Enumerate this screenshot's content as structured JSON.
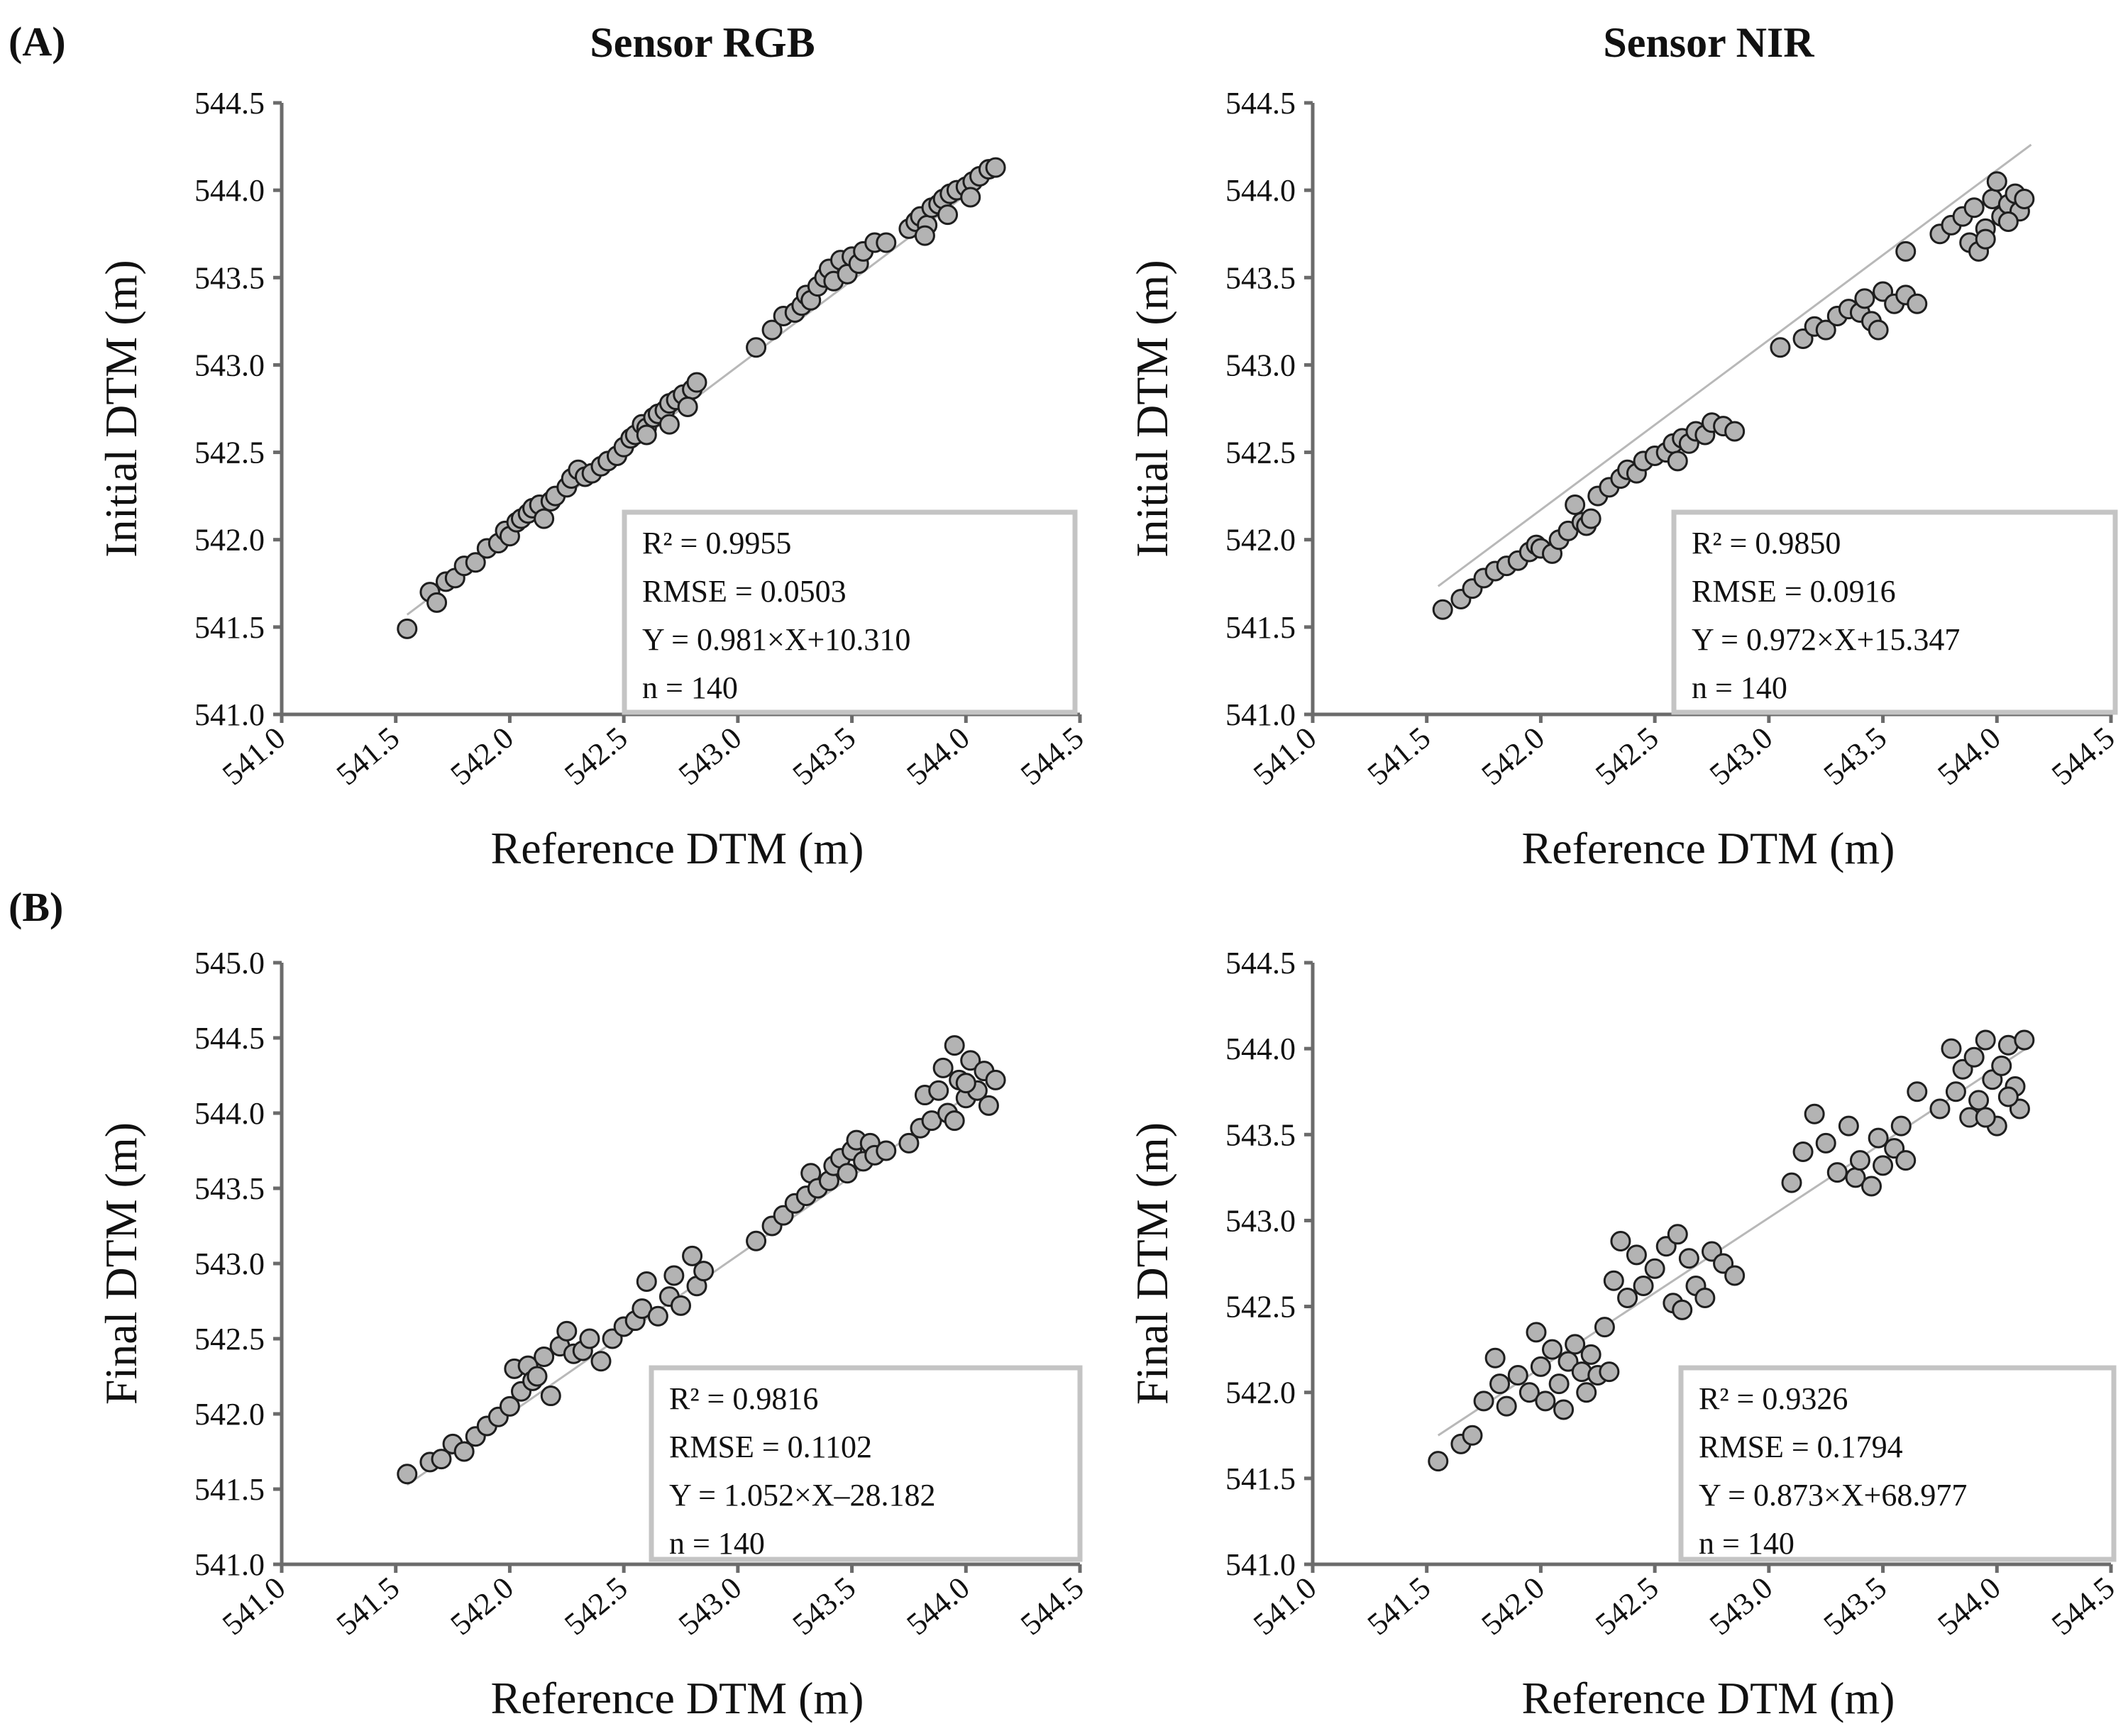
{
  "panel_labels": {
    "a": "(A)",
    "b": "(B)"
  },
  "column_titles": {
    "rgb": "Sensor RGB",
    "nir": "Sensor NIR"
  },
  "colors": {
    "marker_fill": "#b3b3b3",
    "marker_stroke": "#1e1e1e",
    "axis": "#6b6b6b",
    "fit_line": "#b8b8b8",
    "box_border": "#c4c4c4"
  },
  "chart_data": [
    {
      "id": "a_rgb",
      "type": "scatter",
      "title": "Sensor RGB",
      "xlabel": "Reference DTM (m)",
      "ylabel": "Initial DTM (m)",
      "xlim": [
        541.0,
        544.5
      ],
      "ylim": [
        541.0,
        544.5
      ],
      "xticks": [
        "541.0",
        "541.5",
        "542.0",
        "542.5",
        "543.0",
        "543.5",
        "544.0",
        "544.5"
      ],
      "yticks": [
        "541.0",
        "541.5",
        "542.0",
        "542.5",
        "543.0",
        "543.5",
        "544.0",
        "544.5"
      ],
      "fit": {
        "slope": 0.981,
        "intercept": 10.31,
        "x_range": [
          541.55,
          544.15
        ]
      },
      "stats": [
        "R² = 0.9955",
        "RMSE = 0.0503",
        "Y = 0.981×X+10.310",
        "n = 140"
      ],
      "points": [
        [
          541.55,
          541.49
        ],
        [
          541.65,
          541.7
        ],
        [
          541.68,
          541.64
        ],
        [
          541.72,
          541.76
        ],
        [
          541.76,
          541.78
        ],
        [
          541.8,
          541.85
        ],
        [
          541.85,
          541.87
        ],
        [
          541.9,
          541.95
        ],
        [
          541.95,
          541.98
        ],
        [
          541.98,
          542.05
        ],
        [
          542.0,
          542.02
        ],
        [
          542.03,
          542.1
        ],
        [
          542.05,
          542.12
        ],
        [
          542.08,
          542.15
        ],
        [
          542.1,
          542.18
        ],
        [
          542.13,
          542.2
        ],
        [
          542.15,
          542.12
        ],
        [
          542.18,
          542.22
        ],
        [
          542.2,
          542.25
        ],
        [
          542.25,
          542.3
        ],
        [
          542.27,
          542.35
        ],
        [
          542.3,
          542.4
        ],
        [
          542.33,
          542.36
        ],
        [
          542.36,
          542.38
        ],
        [
          542.4,
          542.42
        ],
        [
          542.43,
          542.45
        ],
        [
          542.47,
          542.48
        ],
        [
          542.5,
          542.53
        ],
        [
          542.53,
          542.58
        ],
        [
          542.55,
          542.6
        ],
        [
          542.58,
          542.66
        ],
        [
          542.6,
          542.64
        ],
        [
          542.63,
          542.7
        ],
        [
          542.65,
          542.72
        ],
        [
          542.68,
          542.74
        ],
        [
          542.7,
          542.78
        ],
        [
          542.73,
          542.8
        ],
        [
          542.76,
          542.83
        ],
        [
          542.8,
          542.86
        ],
        [
          542.82,
          542.9
        ],
        [
          543.08,
          543.1
        ],
        [
          543.15,
          543.2
        ],
        [
          543.2,
          543.28
        ],
        [
          543.25,
          543.3
        ],
        [
          543.28,
          543.34
        ],
        [
          543.3,
          543.4
        ],
        [
          543.32,
          543.37
        ],
        [
          543.35,
          543.45
        ],
        [
          543.38,
          543.5
        ],
        [
          543.4,
          543.55
        ],
        [
          543.42,
          543.48
        ],
        [
          543.45,
          543.6
        ],
        [
          543.48,
          543.52
        ],
        [
          543.5,
          543.62
        ],
        [
          543.53,
          543.58
        ],
        [
          543.55,
          543.65
        ],
        [
          543.6,
          543.7
        ],
        [
          543.65,
          543.7
        ],
        [
          543.75,
          543.78
        ],
        [
          543.78,
          543.82
        ],
        [
          543.8,
          543.85
        ],
        [
          543.83,
          543.8
        ],
        [
          543.85,
          543.9
        ],
        [
          543.88,
          543.92
        ],
        [
          543.9,
          543.95
        ],
        [
          543.93,
          543.98
        ],
        [
          543.96,
          544.0
        ],
        [
          544.0,
          544.02
        ],
        [
          544.03,
          544.05
        ],
        [
          544.06,
          544.08
        ],
        [
          544.1,
          544.12
        ],
        [
          544.13,
          544.13
        ],
        [
          543.82,
          543.74
        ],
        [
          543.92,
          543.86
        ],
        [
          544.02,
          543.96
        ],
        [
          542.6,
          542.6
        ],
        [
          542.7,
          542.66
        ],
        [
          542.78,
          542.76
        ]
      ]
    },
    {
      "id": "a_nir",
      "type": "scatter",
      "title": "Sensor NIR",
      "xlabel": "Reference DTM (m)",
      "ylabel": "Initial DTM (m)",
      "xlim": [
        541.0,
        544.5
      ],
      "ylim": [
        541.0,
        544.5
      ],
      "xticks": [
        "541.0",
        "541.5",
        "542.0",
        "542.5",
        "543.0",
        "543.5",
        "544.0",
        "544.5"
      ],
      "yticks": [
        "541.0",
        "541.5",
        "542.0",
        "542.5",
        "543.0",
        "543.5",
        "544.0",
        "544.5"
      ],
      "fit": {
        "slope": 0.972,
        "intercept": 15.347,
        "x_range": [
          541.55,
          544.15
        ]
      },
      "stats": [
        "R² = 0.9850",
        "RMSE = 0.0916",
        "Y = 0.972×X+15.347",
        "n = 140"
      ],
      "points": [
        [
          541.57,
          541.6
        ],
        [
          541.65,
          541.66
        ],
        [
          541.7,
          541.72
        ],
        [
          541.75,
          541.78
        ],
        [
          541.8,
          541.82
        ],
        [
          541.85,
          541.85
        ],
        [
          541.9,
          541.88
        ],
        [
          541.95,
          541.93
        ],
        [
          541.98,
          541.97
        ],
        [
          542.0,
          541.95
        ],
        [
          542.05,
          541.92
        ],
        [
          542.08,
          542.0
        ],
        [
          542.12,
          542.05
        ],
        [
          542.15,
          542.2
        ],
        [
          542.18,
          542.1
        ],
        [
          542.2,
          542.08
        ],
        [
          542.22,
          542.12
        ],
        [
          542.25,
          542.25
        ],
        [
          542.3,
          542.3
        ],
        [
          542.35,
          542.35
        ],
        [
          542.38,
          542.4
        ],
        [
          542.42,
          542.38
        ],
        [
          542.45,
          542.45
        ],
        [
          542.5,
          542.48
        ],
        [
          542.55,
          542.5
        ],
        [
          542.58,
          542.55
        ],
        [
          542.6,
          542.45
        ],
        [
          542.62,
          542.58
        ],
        [
          542.65,
          542.55
        ],
        [
          542.68,
          542.62
        ],
        [
          542.72,
          542.6
        ],
        [
          542.75,
          542.67
        ],
        [
          542.8,
          542.65
        ],
        [
          542.85,
          542.62
        ],
        [
          543.05,
          543.1
        ],
        [
          543.15,
          543.15
        ],
        [
          543.2,
          543.22
        ],
        [
          543.25,
          543.2
        ],
        [
          543.3,
          543.28
        ],
        [
          543.35,
          543.32
        ],
        [
          543.4,
          543.3
        ],
        [
          543.42,
          543.38
        ],
        [
          543.45,
          543.25
        ],
        [
          543.48,
          543.2
        ],
        [
          543.5,
          543.42
        ],
        [
          543.55,
          543.35
        ],
        [
          543.6,
          543.4
        ],
        [
          543.65,
          543.35
        ],
        [
          543.6,
          543.65
        ],
        [
          543.75,
          543.75
        ],
        [
          543.8,
          543.8
        ],
        [
          543.85,
          543.85
        ],
        [
          543.88,
          543.7
        ],
        [
          543.9,
          543.9
        ],
        [
          543.92,
          543.65
        ],
        [
          543.95,
          543.78
        ],
        [
          543.98,
          543.95
        ],
        [
          544.0,
          544.05
        ],
        [
          544.02,
          543.85
        ],
        [
          544.05,
          543.92
        ],
        [
          544.08,
          543.98
        ],
        [
          544.1,
          543.88
        ],
        [
          544.12,
          543.95
        ],
        [
          543.95,
          543.72
        ],
        [
          544.05,
          543.82
        ]
      ]
    },
    {
      "id": "b_rgb",
      "type": "scatter",
      "title": "",
      "xlabel": "Reference DTM (m)",
      "ylabel": "Final DTM (m)",
      "xlim": [
        541.0,
        544.5
      ],
      "ylim": [
        541.0,
        545.0
      ],
      "xticks": [
        "541.0",
        "541.5",
        "542.0",
        "542.5",
        "543.0",
        "543.5",
        "544.0",
        "544.5"
      ],
      "yticks": [
        "541.0",
        "541.5",
        "542.0",
        "542.5",
        "543.0",
        "543.5",
        "544.0",
        "544.5",
        "545.0"
      ],
      "fit": {
        "slope": 1.052,
        "intercept": -28.182,
        "x_range": [
          541.55,
          544.15
        ]
      },
      "stats": [
        "R² = 0.9816",
        "RMSE = 0.1102",
        "Y = 1.052×X–28.182",
        "n = 140"
      ],
      "points": [
        [
          541.55,
          541.6
        ],
        [
          541.65,
          541.68
        ],
        [
          541.7,
          541.7
        ],
        [
          541.75,
          541.8
        ],
        [
          541.8,
          541.75
        ],
        [
          541.85,
          541.85
        ],
        [
          541.9,
          541.92
        ],
        [
          541.95,
          541.98
        ],
        [
          542.0,
          542.05
        ],
        [
          542.02,
          542.3
        ],
        [
          542.05,
          542.15
        ],
        [
          542.08,
          542.32
        ],
        [
          542.1,
          542.22
        ],
        [
          542.12,
          542.25
        ],
        [
          542.15,
          542.38
        ],
        [
          542.18,
          542.12
        ],
        [
          542.22,
          542.45
        ],
        [
          542.25,
          542.55
        ],
        [
          542.28,
          542.4
        ],
        [
          542.32,
          542.42
        ],
        [
          542.35,
          542.5
        ],
        [
          542.4,
          542.35
        ],
        [
          542.45,
          542.5
        ],
        [
          542.5,
          542.58
        ],
        [
          542.55,
          542.62
        ],
        [
          542.58,
          542.7
        ],
        [
          542.6,
          542.88
        ],
        [
          542.65,
          542.65
        ],
        [
          542.7,
          542.78
        ],
        [
          542.72,
          542.92
        ],
        [
          542.75,
          542.72
        ],
        [
          542.8,
          543.05
        ],
        [
          542.82,
          542.85
        ],
        [
          542.85,
          542.95
        ],
        [
          543.08,
          543.15
        ],
        [
          543.15,
          543.25
        ],
        [
          543.2,
          543.32
        ],
        [
          543.25,
          543.4
        ],
        [
          543.3,
          543.45
        ],
        [
          543.32,
          543.6
        ],
        [
          543.35,
          543.5
        ],
        [
          543.4,
          543.55
        ],
        [
          543.42,
          543.65
        ],
        [
          543.45,
          543.7
        ],
        [
          543.48,
          543.6
        ],
        [
          543.5,
          543.75
        ],
        [
          543.52,
          543.82
        ],
        [
          543.55,
          543.68
        ],
        [
          543.58,
          543.8
        ],
        [
          543.6,
          543.72
        ],
        [
          543.65,
          543.75
        ],
        [
          543.75,
          543.8
        ],
        [
          543.8,
          543.9
        ],
        [
          543.82,
          544.12
        ],
        [
          543.85,
          543.95
        ],
        [
          543.88,
          544.15
        ],
        [
          543.9,
          544.3
        ],
        [
          543.92,
          544.0
        ],
        [
          543.95,
          544.45
        ],
        [
          543.97,
          544.22
        ],
        [
          544.0,
          544.1
        ],
        [
          544.02,
          544.35
        ],
        [
          544.05,
          544.15
        ],
        [
          544.08,
          544.28
        ],
        [
          544.1,
          544.05
        ],
        [
          544.13,
          544.22
        ],
        [
          543.95,
          543.95
        ],
        [
          544.0,
          544.2
        ]
      ]
    },
    {
      "id": "b_nir",
      "type": "scatter",
      "title": "",
      "xlabel": "Reference DTM (m)",
      "ylabel": "Final DTM (m)",
      "xlim": [
        541.0,
        544.5
      ],
      "ylim": [
        541.0,
        544.5
      ],
      "xticks": [
        "541.0",
        "541.5",
        "542.0",
        "542.5",
        "543.0",
        "543.5",
        "544.0",
        "544.5"
      ],
      "yticks": [
        "541.0",
        "541.5",
        "542.0",
        "542.5",
        "543.0",
        "543.5",
        "544.0",
        "544.5"
      ],
      "fit": {
        "slope": 0.873,
        "intercept": 68.977,
        "x_range": [
          541.55,
          544.15
        ]
      },
      "stats": [
        "R² = 0.9326",
        "RMSE = 0.1794",
        "Y = 0.873×X+68.977",
        "n = 140"
      ],
      "points": [
        [
          541.55,
          541.6
        ],
        [
          541.65,
          541.7
        ],
        [
          541.7,
          541.75
        ],
        [
          541.75,
          541.95
        ],
        [
          541.8,
          542.2
        ],
        [
          541.82,
          542.05
        ],
        [
          541.85,
          541.92
        ],
        [
          541.9,
          542.1
        ],
        [
          541.95,
          542.0
        ],
        [
          541.98,
          542.35
        ],
        [
          542.0,
          542.15
        ],
        [
          542.02,
          541.95
        ],
        [
          542.05,
          542.25
        ],
        [
          542.08,
          542.05
        ],
        [
          542.1,
          541.9
        ],
        [
          542.12,
          542.18
        ],
        [
          542.15,
          542.28
        ],
        [
          542.18,
          542.12
        ],
        [
          542.2,
          542.0
        ],
        [
          542.22,
          542.22
        ],
        [
          542.25,
          542.1
        ],
        [
          542.28,
          542.38
        ],
        [
          542.3,
          542.12
        ],
        [
          542.32,
          542.65
        ],
        [
          542.35,
          542.88
        ],
        [
          542.38,
          542.55
        ],
        [
          542.42,
          542.8
        ],
        [
          542.45,
          542.62
        ],
        [
          542.5,
          542.72
        ],
        [
          542.55,
          542.85
        ],
        [
          542.58,
          542.52
        ],
        [
          542.6,
          542.92
        ],
        [
          542.62,
          542.48
        ],
        [
          542.65,
          542.78
        ],
        [
          542.68,
          542.62
        ],
        [
          542.72,
          542.55
        ],
        [
          542.75,
          542.82
        ],
        [
          542.8,
          542.75
        ],
        [
          542.85,
          542.68
        ],
        [
          543.1,
          543.22
        ],
        [
          543.15,
          543.4
        ],
        [
          543.2,
          543.62
        ],
        [
          543.25,
          543.45
        ],
        [
          543.3,
          543.28
        ],
        [
          543.35,
          543.55
        ],
        [
          543.38,
          543.25
        ],
        [
          543.4,
          543.35
        ],
        [
          543.45,
          543.2
        ],
        [
          543.48,
          543.48
        ],
        [
          543.5,
          543.32
        ],
        [
          543.55,
          543.42
        ],
        [
          543.58,
          543.55
        ],
        [
          543.6,
          543.35
        ],
        [
          543.65,
          543.75
        ],
        [
          543.75,
          543.65
        ],
        [
          543.8,
          544.0
        ],
        [
          543.82,
          543.75
        ],
        [
          543.85,
          543.88
        ],
        [
          543.88,
          543.6
        ],
        [
          543.9,
          543.95
        ],
        [
          543.92,
          543.7
        ],
        [
          543.95,
          544.05
        ],
        [
          543.98,
          543.82
        ],
        [
          544.0,
          543.55
        ],
        [
          544.02,
          543.9
        ],
        [
          544.05,
          544.02
        ],
        [
          544.08,
          543.78
        ],
        [
          544.1,
          543.65
        ],
        [
          544.12,
          544.05
        ],
        [
          543.95,
          543.6
        ],
        [
          544.05,
          543.72
        ]
      ]
    }
  ]
}
